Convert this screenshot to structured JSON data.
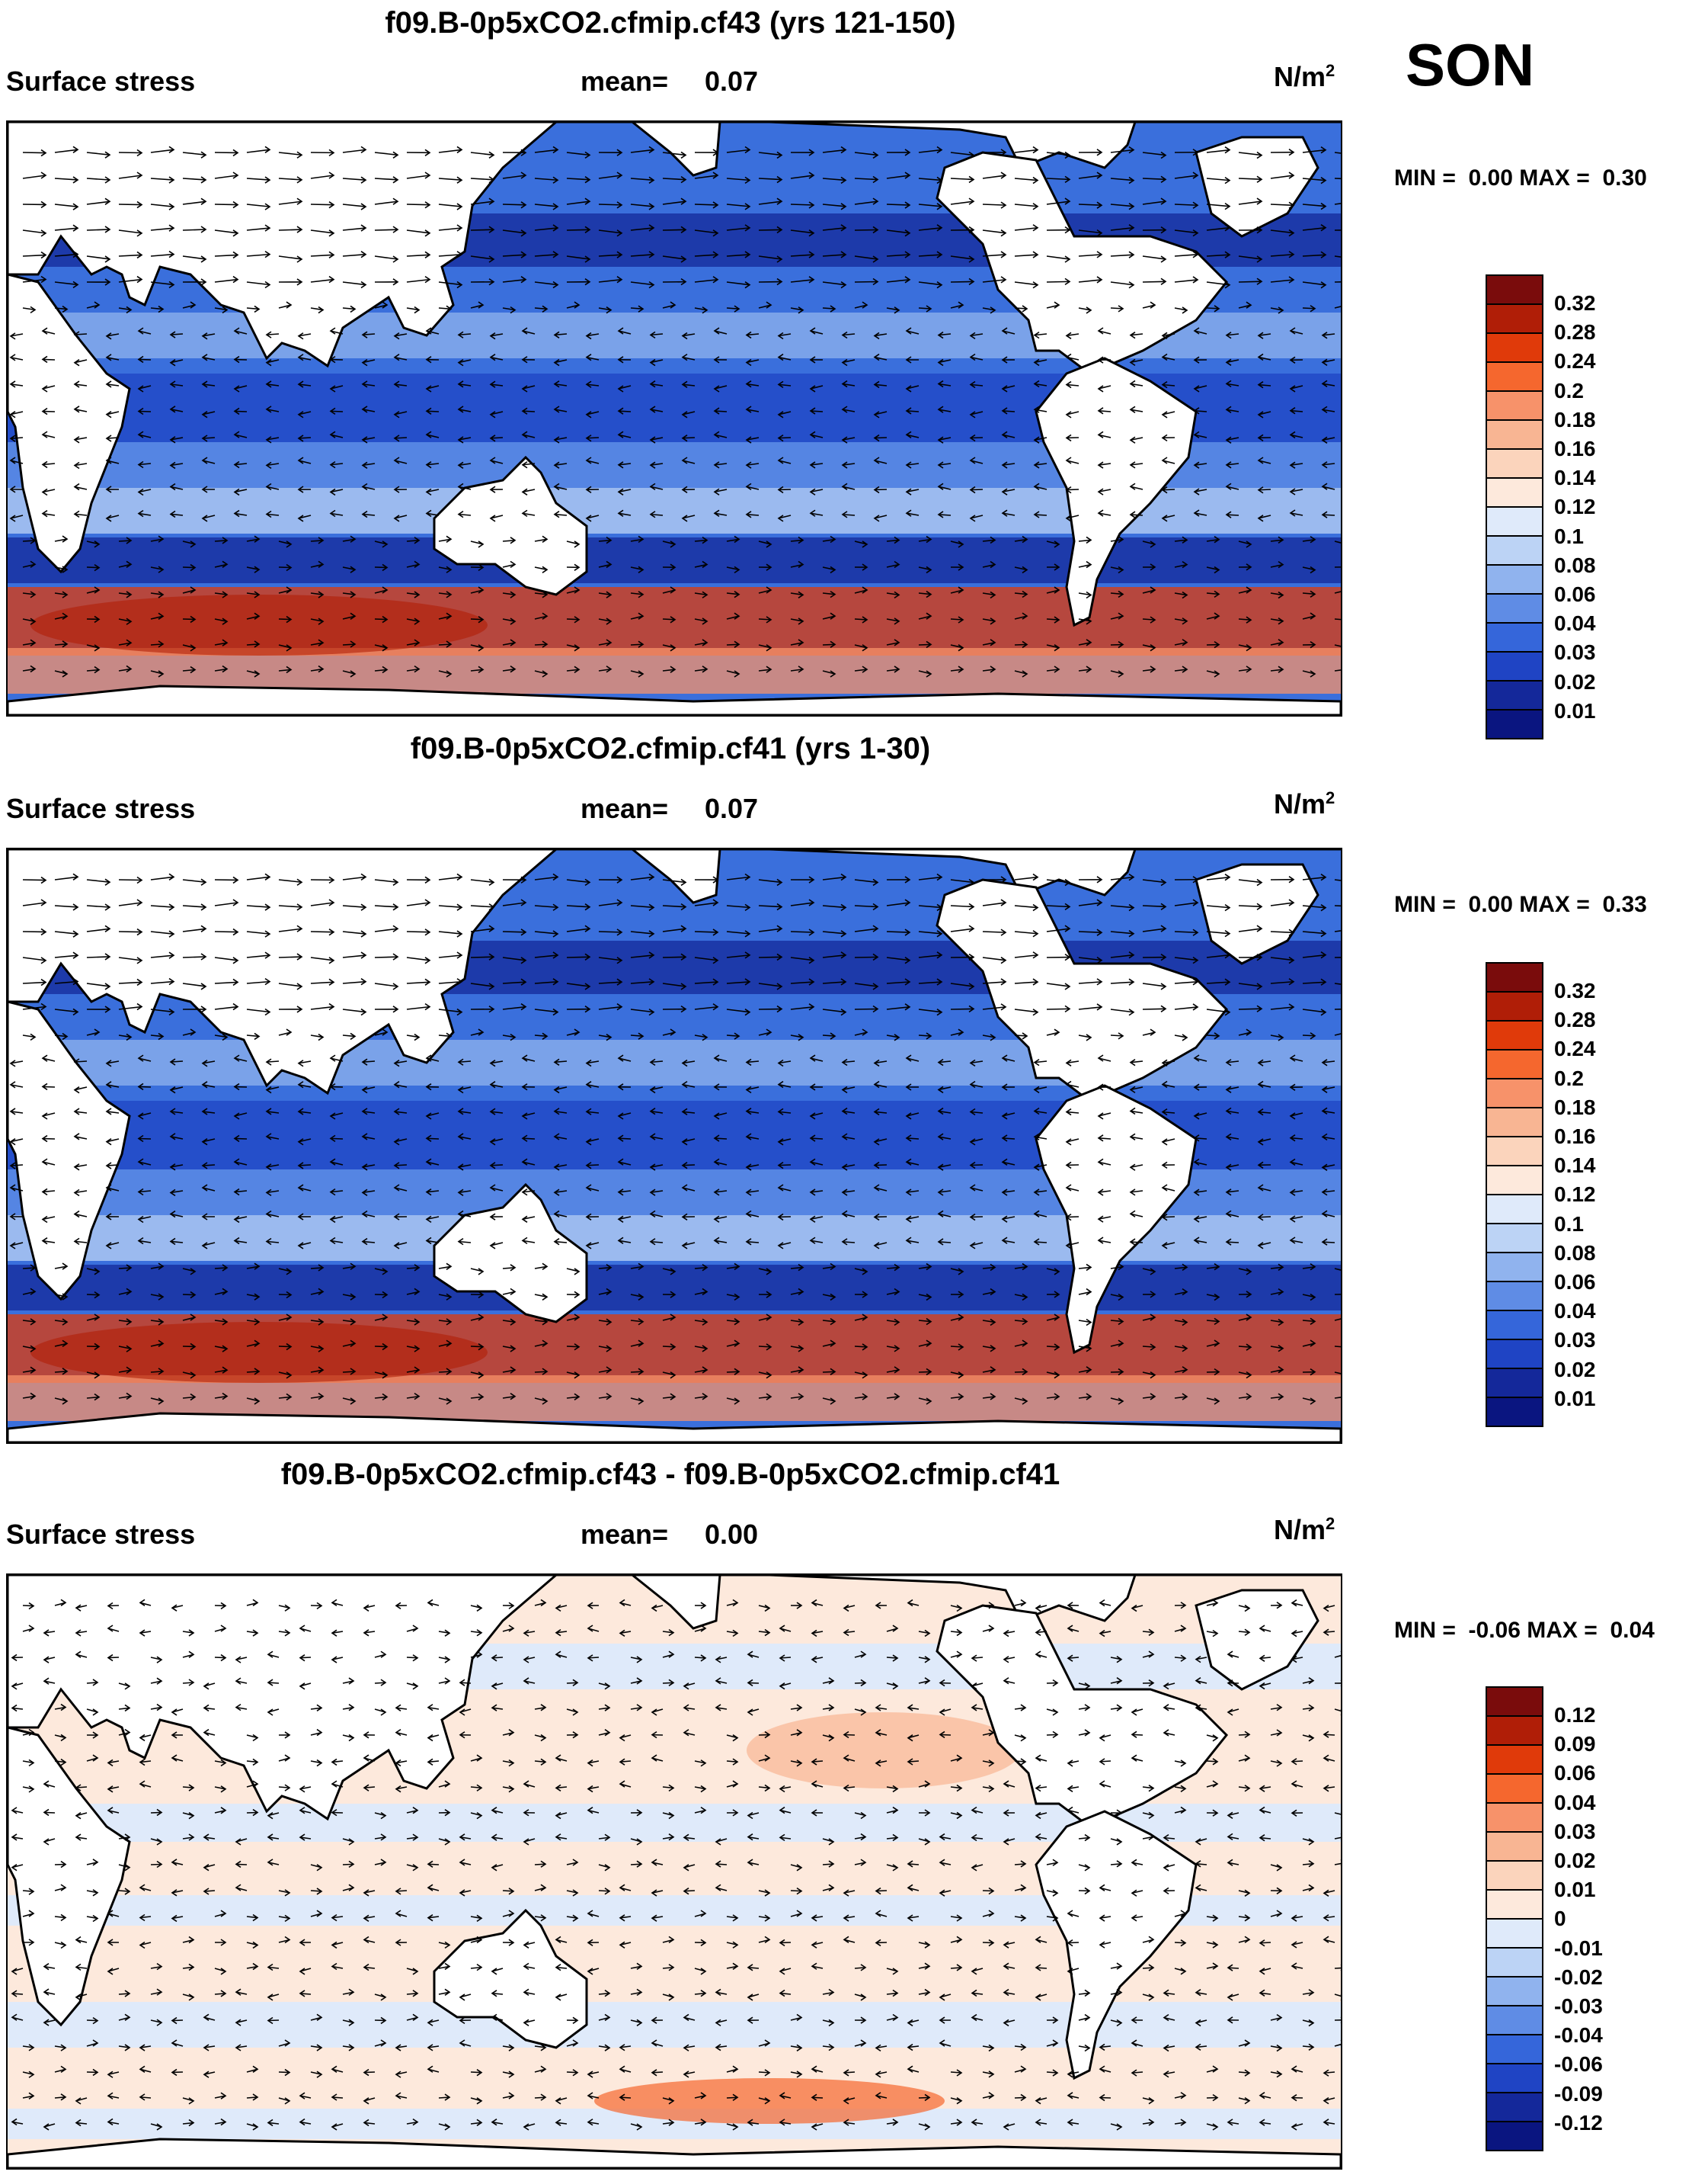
{
  "season": "SON",
  "unit_base": "N/m",
  "unit_exp": "2",
  "panels": [
    {
      "title": "f09.B-0p5xCO2.cfmip.cf43 (yrs 121-150)",
      "variable": "Surface stress",
      "mean_label": "mean=",
      "mean_value": "0.07",
      "min_label": "MIN =",
      "min_value": "0.00",
      "max_label": "MAX =",
      "max_value": "0.30",
      "kind": "abs"
    },
    {
      "title": "f09.B-0p5xCO2.cfmip.cf41 (yrs 1-30)",
      "variable": "Surface stress",
      "mean_label": "mean=",
      "mean_value": "0.07",
      "min_label": "MIN =",
      "min_value": "0.00",
      "max_label": "MAX =",
      "max_value": "0.33",
      "kind": "abs"
    },
    {
      "title": "f09.B-0p5xCO2.cfmip.cf43 - f09.B-0p5xCO2.cfmip.cf41",
      "variable": "Surface stress",
      "mean_label": "mean=",
      "mean_value": "0.00",
      "min_label": "MIN =",
      "min_value": "-0.06",
      "max_label": "MAX =",
      "max_value": "0.04",
      "kind": "diff"
    }
  ],
  "colorbars": {
    "abs_labels": [
      "0.32",
      "0.28",
      "0.24",
      "0.2",
      "0.18",
      "0.16",
      "0.14",
      "0.12",
      "0.1",
      "0.08",
      "0.06",
      "0.04",
      "0.03",
      "0.02",
      "0.01"
    ],
    "diff_labels": [
      "0.12",
      "0.09",
      "0.06",
      "0.04",
      "0.03",
      "0.02",
      "0.01",
      "0",
      "-0.01",
      "-0.02",
      "-0.03",
      "-0.04",
      "-0.06",
      "-0.09",
      "-0.12"
    ],
    "colors": [
      "#7a0c0c",
      "#b01e07",
      "#e03a0a",
      "#f5672e",
      "#f7926a",
      "#f8b593",
      "#fbd4bc",
      "#fde9dc",
      "#dfeafa",
      "#bcd3f5",
      "#90b3ee",
      "#5f8ce5",
      "#3566da",
      "#1f44c4",
      "#14289a",
      "#0a1580"
    ]
  }
}
